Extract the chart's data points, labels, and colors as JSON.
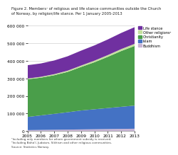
{
  "title_line1": "Figure 2. Members¹ of religious and life stance communities outside the Church",
  "title_line2": "of Norway, by religion/life stance. Per 1 January 2005-2013",
  "years": [
    2005,
    2006,
    2007,
    2008,
    2009,
    2010,
    2011,
    2012,
    2013
  ],
  "Buddhism": [
    5000,
    6000,
    7000,
    8000,
    9000,
    10000,
    11000,
    12000,
    13000
  ],
  "Islam": [
    75000,
    83000,
    91000,
    99000,
    108000,
    114000,
    120000,
    126000,
    132000
  ],
  "Christianity": [
    215000,
    215000,
    220000,
    230000,
    248000,
    268000,
    292000,
    318000,
    340000
  ],
  "Other religions": [
    4000,
    5000,
    6000,
    7000,
    8000,
    9000,
    10000,
    11000,
    12000
  ],
  "Life stance": [
    76000,
    76000,
    78000,
    82000,
    85000,
    87000,
    89000,
    92000,
    95000
  ],
  "colors": {
    "Buddhism": "#c8b4d5",
    "Islam": "#4472c4",
    "Christianity": "#4a9e4a",
    "Other religions": "#c5e09e",
    "Life stance": "#7030a0"
  },
  "ylim": [
    0,
    600000
  ],
  "yticks": [
    0,
    100000,
    200000,
    300000,
    400000,
    500000,
    600000
  ],
  "ytick_labels": [
    "0",
    "100 000",
    "200 000",
    "300 000",
    "400 000",
    "500 000",
    "600 000"
  ],
  "footnote1": "¹Including only members for whom government subsidy is received.",
  "footnote2": "²Including Bahá’í, Judaism, Sikhism and other religious communities.",
  "footnote3": "Source: Statistics Norway.",
  "background_color": "#ffffff",
  "grid_color": "#d0d0d0"
}
